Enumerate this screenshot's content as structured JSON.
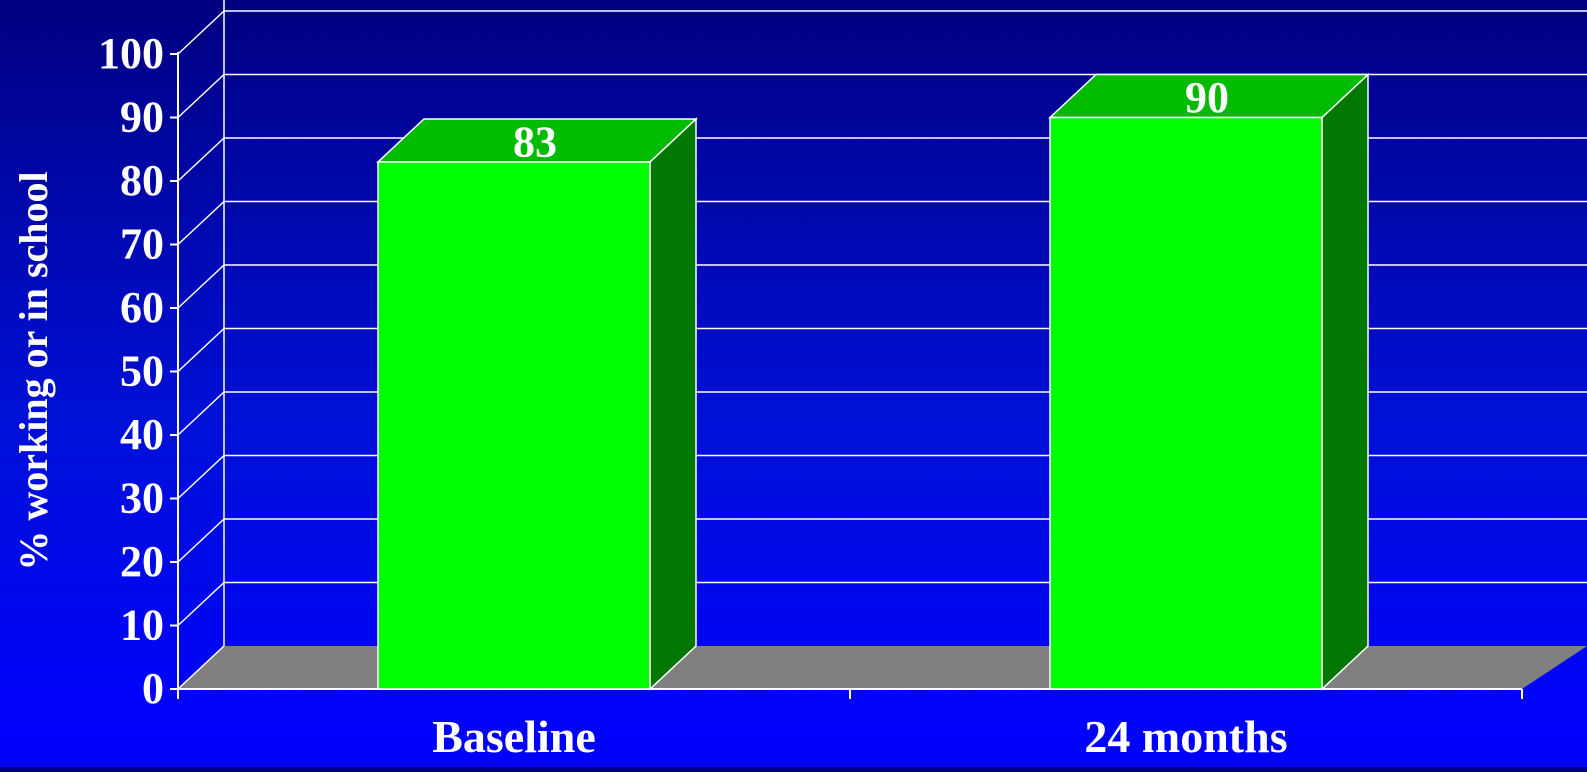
{
  "chart_data": {
    "type": "bar",
    "title": "",
    "xlabel": "",
    "ylabel": "% working or in school",
    "categories": [
      "Baseline",
      "24 months"
    ],
    "values": [
      83,
      90
    ],
    "data_labels": [
      "83",
      "90"
    ],
    "ylim": [
      0,
      100
    ],
    "yticks": [
      0,
      10,
      20,
      30,
      40,
      50,
      60,
      70,
      80,
      90,
      100
    ],
    "grid": true,
    "legend": "none",
    "three_d": true,
    "colors": {
      "bar_front": "#00ff00",
      "bar_top": "#00bb00",
      "bar_side": "#007700",
      "floor": "#808080",
      "gridline": "#ffffff",
      "text": "#ffffff"
    }
  }
}
